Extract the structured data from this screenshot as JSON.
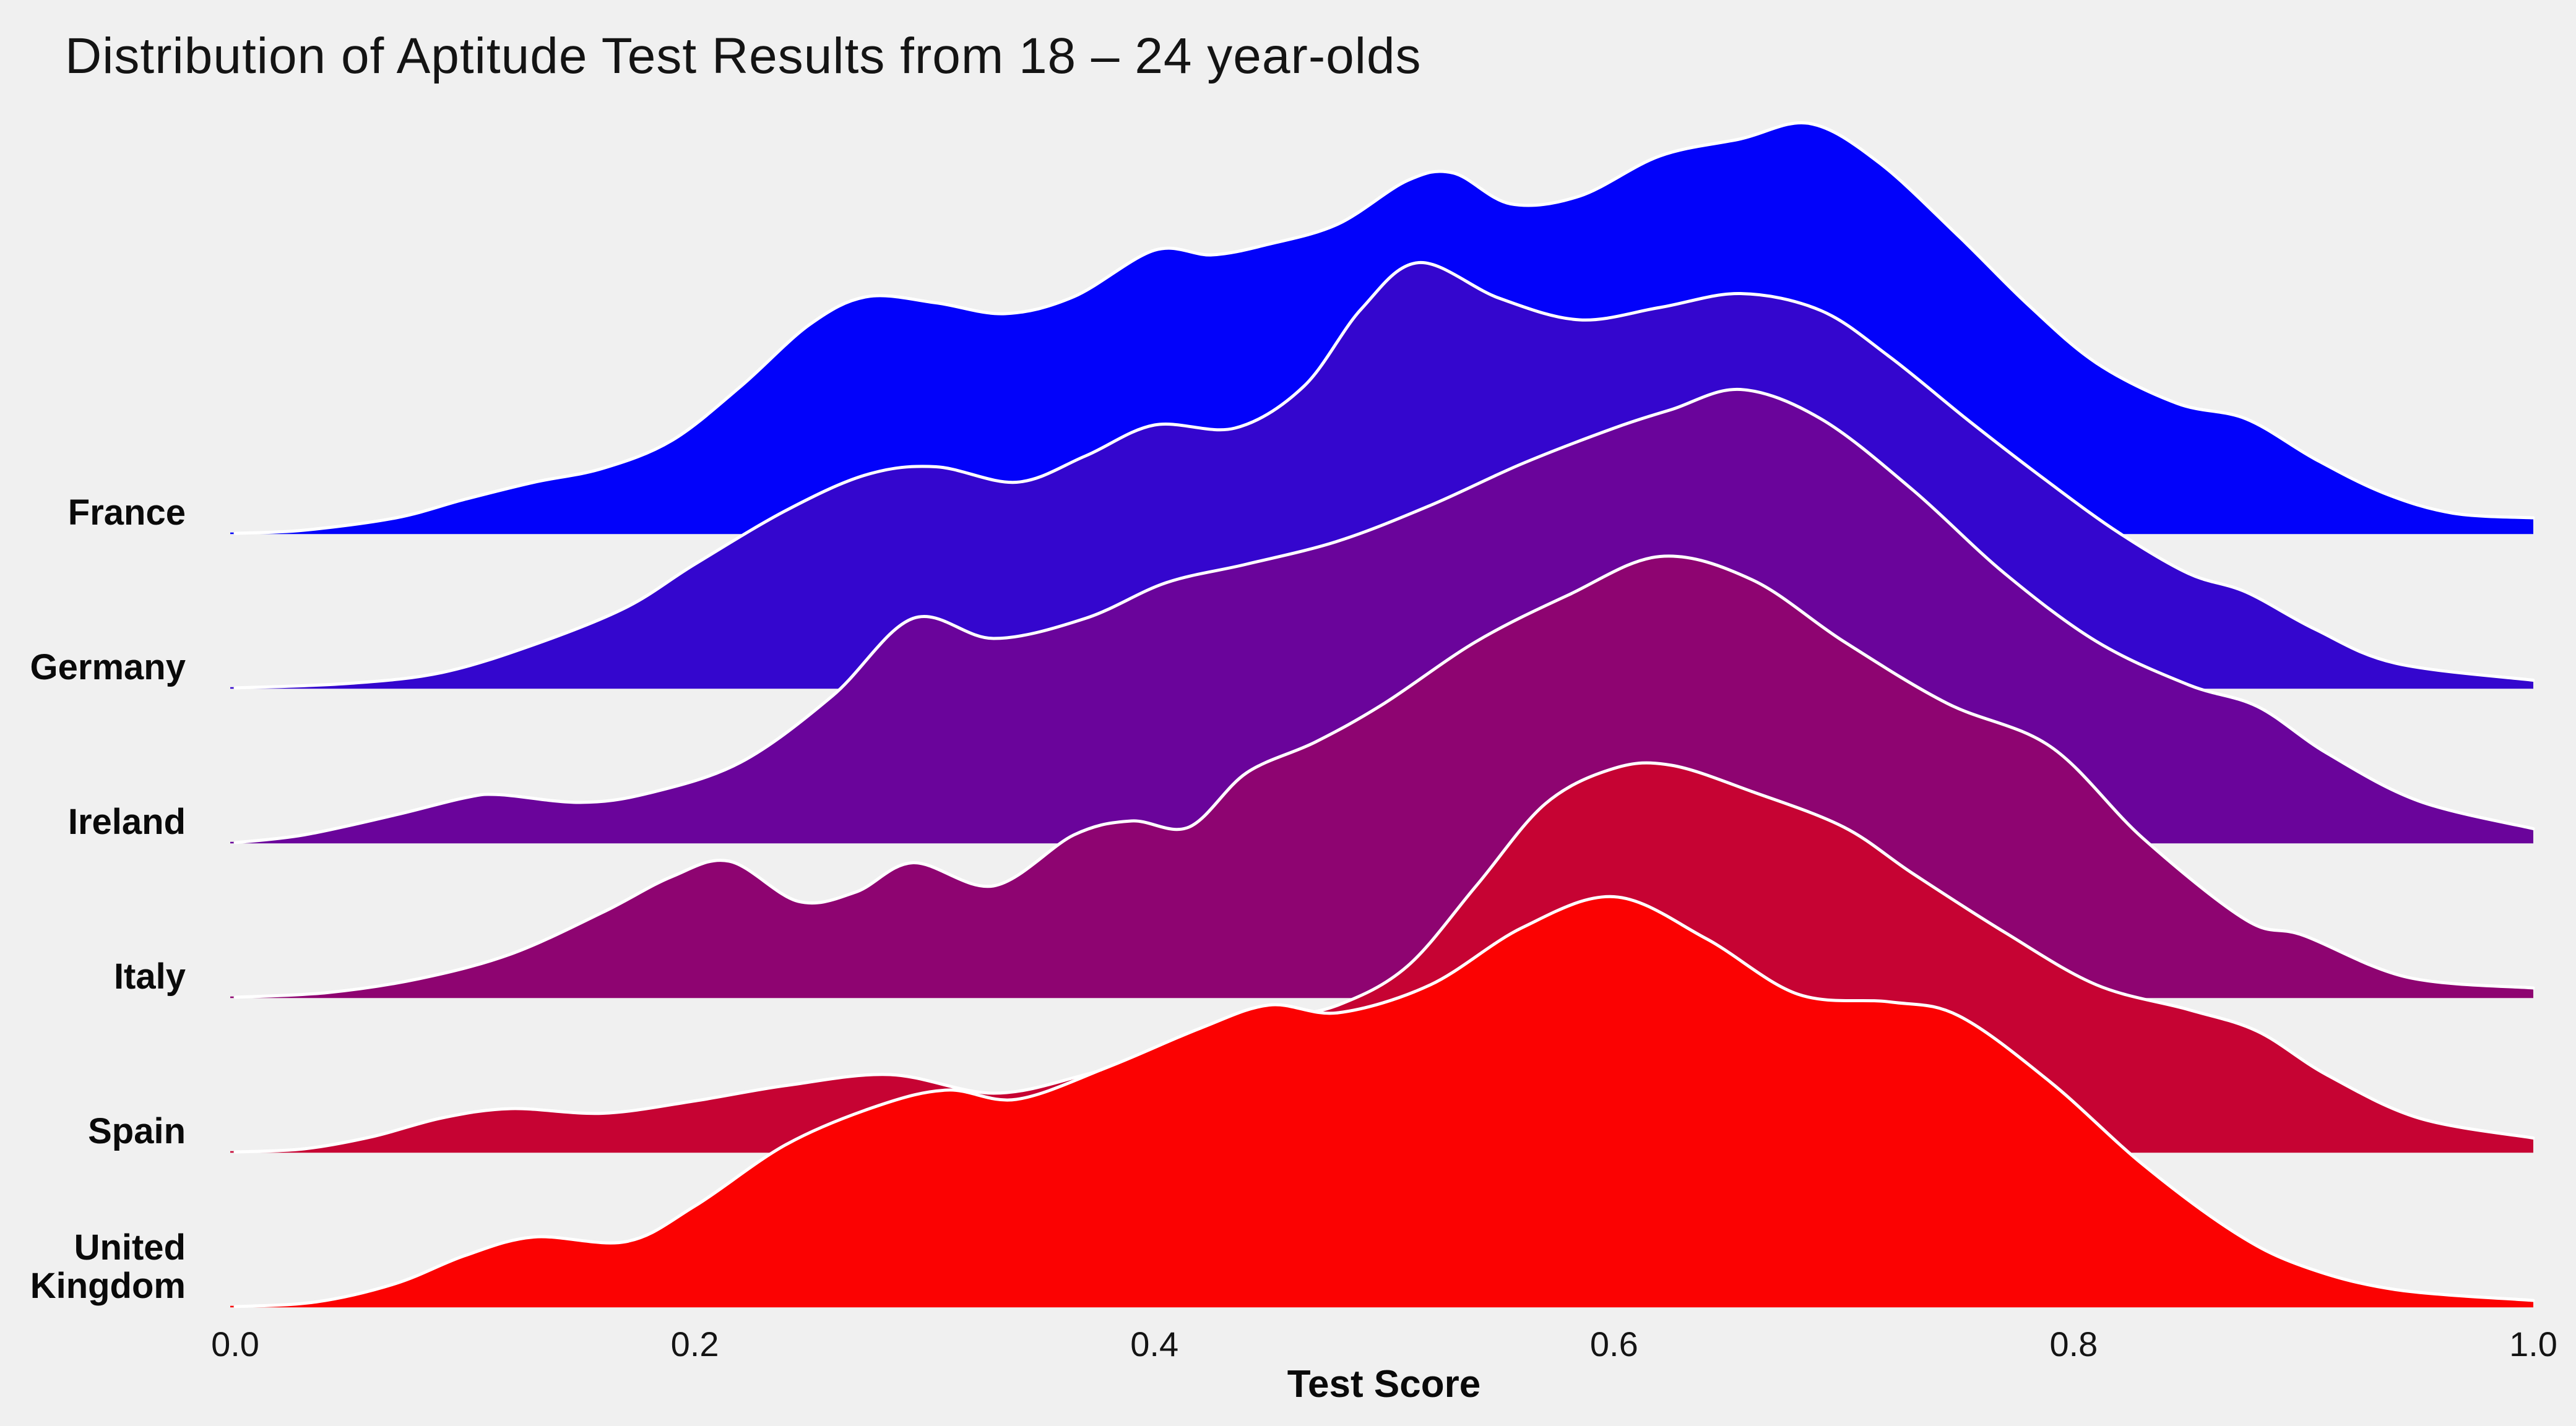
{
  "figure": {
    "background_color": "#f0f0f0",
    "text_color": "#141414"
  },
  "chart_data": {
    "type": "area",
    "variant": "ridgeline",
    "title": "Distribution of Aptitude Test Results from 18 – 24 year-olds",
    "xlabel": "Test Score",
    "ylabel": "",
    "xlim": [
      0.0,
      1.0
    ],
    "grid": false,
    "legend": "none",
    "outline_color": "#ffffff",
    "x_ticks": {
      "labels": [
        "0.0",
        "0.2",
        "0.4",
        "0.6",
        "0.8",
        "1.0"
      ],
      "values": [
        0.0,
        0.2,
        0.4,
        0.6,
        0.8,
        1.0
      ]
    },
    "categories": [
      "France",
      "Germany",
      "Ireland",
      "Italy",
      "Spain",
      "United Kingdom"
    ],
    "density_units": "relative to vertical gap between adjacent row baselines (1.0 = one row spacing)",
    "series": [
      {
        "name": "France",
        "label_lines": [
          "France"
        ],
        "color": "#0202fa",
        "x": [
          0,
          0.03,
          0.07,
          0.1,
          0.13,
          0.16,
          0.19,
          0.22,
          0.25,
          0.275,
          0.305,
          0.335,
          0.365,
          0.4,
          0.425,
          0.45,
          0.48,
          0.51,
          0.53,
          0.555,
          0.585,
          0.62,
          0.655,
          0.685,
          0.715,
          0.75,
          0.78,
          0.81,
          0.845,
          0.875,
          0.905,
          0.935,
          0.965,
          1.0
        ],
        "density": [
          0,
          0.02,
          0.1,
          0.22,
          0.33,
          0.42,
          0.6,
          0.95,
          1.35,
          1.53,
          1.49,
          1.42,
          1.53,
          1.83,
          1.8,
          1.87,
          2.0,
          2.28,
          2.33,
          2.13,
          2.18,
          2.44,
          2.55,
          2.65,
          2.4,
          1.92,
          1.48,
          1.1,
          0.84,
          0.74,
          0.48,
          0.26,
          0.13,
          0.1
        ]
      },
      {
        "name": "Germany",
        "label_lines": [
          "Germany"
        ],
        "color": "#3406ce",
        "x": [
          0,
          0.05,
          0.09,
          0.13,
          0.17,
          0.2,
          0.24,
          0.275,
          0.305,
          0.34,
          0.37,
          0.4,
          0.435,
          0.465,
          0.49,
          0.515,
          0.55,
          0.585,
          0.62,
          0.655,
          0.69,
          0.72,
          0.755,
          0.79,
          0.82,
          0.85,
          0.875,
          0.905,
          0.94,
          1.0
        ],
        "density": [
          0,
          0.03,
          0.1,
          0.28,
          0.52,
          0.8,
          1.15,
          1.38,
          1.43,
          1.33,
          1.5,
          1.7,
          1.68,
          1.95,
          2.45,
          2.75,
          2.52,
          2.38,
          2.46,
          2.55,
          2.44,
          2.14,
          1.72,
          1.32,
          1.0,
          0.74,
          0.62,
          0.38,
          0.16,
          0.05
        ]
      },
      {
        "name": "Ireland",
        "label_lines": [
          "Ireland"
        ],
        "color": "#6a049b",
        "x": [
          0,
          0.03,
          0.07,
          0.1,
          0.115,
          0.15,
          0.18,
          0.22,
          0.26,
          0.295,
          0.33,
          0.37,
          0.405,
          0.44,
          0.48,
          0.52,
          0.56,
          0.6,
          0.625,
          0.655,
          0.69,
          0.73,
          0.77,
          0.81,
          0.85,
          0.88,
          0.91,
          0.95,
          1.0
        ],
        "density": [
          0,
          0.05,
          0.18,
          0.29,
          0.31,
          0.26,
          0.32,
          0.52,
          0.95,
          1.45,
          1.32,
          1.45,
          1.68,
          1.8,
          1.95,
          2.18,
          2.45,
          2.68,
          2.8,
          2.93,
          2.74,
          2.28,
          1.74,
          1.3,
          1.02,
          0.88,
          0.58,
          0.27,
          0.09
        ]
      },
      {
        "name": "Italy",
        "label_lines": [
          "Italy"
        ],
        "color": "#8e0471",
        "x": [
          0,
          0.04,
          0.08,
          0.12,
          0.16,
          0.19,
          0.215,
          0.245,
          0.27,
          0.295,
          0.33,
          0.365,
          0.39,
          0.415,
          0.44,
          0.47,
          0.5,
          0.54,
          0.58,
          0.62,
          0.66,
          0.7,
          0.745,
          0.79,
          0.83,
          0.875,
          0.9,
          0.945,
          1.0
        ],
        "density": [
          0,
          0.03,
          0.12,
          0.28,
          0.55,
          0.78,
          0.88,
          0.62,
          0.68,
          0.87,
          0.72,
          1.05,
          1.14,
          1.1,
          1.45,
          1.65,
          1.9,
          2.3,
          2.6,
          2.85,
          2.7,
          2.3,
          1.9,
          1.62,
          1.03,
          0.5,
          0.4,
          0.13,
          0.06
        ]
      },
      {
        "name": "Spain",
        "label_lines": [
          "Spain"
        ],
        "color": "#c60333",
        "x": [
          0,
          0.03,
          0.06,
          0.09,
          0.12,
          0.16,
          0.2,
          0.24,
          0.285,
          0.33,
          0.37,
          0.41,
          0.45,
          0.48,
          0.51,
          0.54,
          0.57,
          0.6,
          0.625,
          0.66,
          0.7,
          0.73,
          0.77,
          0.81,
          0.85,
          0.88,
          0.91,
          0.95,
          1.0
        ],
        "density": [
          0,
          0.02,
          0.1,
          0.22,
          0.28,
          0.25,
          0.33,
          0.43,
          0.5,
          0.38,
          0.5,
          0.68,
          0.85,
          0.95,
          1.2,
          1.72,
          2.25,
          2.48,
          2.5,
          2.33,
          2.1,
          1.8,
          1.42,
          1.08,
          0.92,
          0.78,
          0.5,
          0.22,
          0.09
        ]
      },
      {
        "name": "United Kingdom",
        "label_lines": [
          "United",
          "Kingdom"
        ],
        "color": "#fb0202",
        "x": [
          0,
          0.035,
          0.07,
          0.1,
          0.13,
          0.17,
          0.2,
          0.24,
          0.28,
          0.31,
          0.34,
          0.38,
          0.42,
          0.45,
          0.48,
          0.52,
          0.56,
          0.6,
          0.64,
          0.68,
          0.72,
          0.75,
          0.79,
          0.83,
          0.87,
          0.9,
          0.94,
          1.0
        ],
        "density": [
          0,
          0.03,
          0.15,
          0.33,
          0.45,
          0.42,
          0.65,
          1.05,
          1.3,
          1.4,
          1.34,
          1.55,
          1.8,
          1.95,
          1.9,
          2.08,
          2.45,
          2.65,
          2.38,
          2.02,
          1.97,
          1.88,
          1.45,
          0.92,
          0.48,
          0.26,
          0.11,
          0.04
        ]
      }
    ]
  }
}
